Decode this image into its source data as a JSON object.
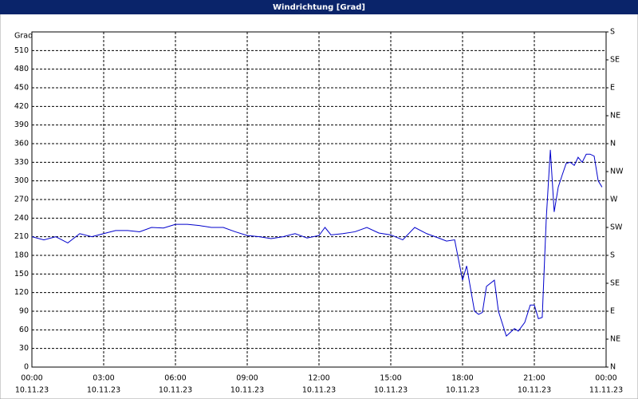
{
  "chart_data": {
    "type": "line",
    "title": "Windrichtung [Grad]",
    "y_label": "Grad",
    "x": [
      0,
      0.5,
      1,
      1.5,
      2,
      2.5,
      3,
      3.5,
      4,
      4.5,
      5,
      5.5,
      6,
      6.5,
      7,
      7.5,
      8,
      8.5,
      9,
      9.5,
      10,
      10.5,
      11,
      11.5,
      12,
      12.25,
      12.5,
      13,
      13.5,
      14,
      14.5,
      15,
      15.5,
      16,
      16.5,
      17,
      17.33,
      17.67,
      18,
      18.17,
      18.5,
      18.67,
      18.83,
      19,
      19.33,
      19.5,
      19.83,
      20.17,
      20.33,
      20.6,
      20.83,
      21,
      21.17,
      21.33,
      21.5,
      21.67,
      21.83,
      22,
      22.17,
      22.33,
      22.5,
      22.67,
      22.83,
      23,
      23.17,
      23.33,
      23.5,
      23.67,
      23.83
    ],
    "series": [
      {
        "name": "Windrichtung",
        "color": "#0000cc",
        "values": [
          210,
          205,
          210,
          200,
          215,
          210,
          215,
          220,
          220,
          218,
          225,
          224,
          230,
          230,
          228,
          225,
          225,
          218,
          212,
          210,
          207,
          210,
          215,
          208,
          212,
          225,
          213,
          215,
          218,
          225,
          216,
          213,
          205,
          225,
          215,
          208,
          203,
          205,
          140,
          163,
          90,
          85,
          88,
          130,
          140,
          90,
          50,
          62,
          58,
          72,
          100,
          100,
          78,
          80,
          240,
          350,
          250,
          290,
          310,
          328,
          330,
          325,
          338,
          330,
          343,
          343,
          340,
          300,
          290
        ]
      }
    ],
    "xlim": [
      0,
      24
    ],
    "xticks": [
      {
        "value": 0,
        "label": "00:00"
      },
      {
        "value": 3,
        "label": "03:00"
      },
      {
        "value": 6,
        "label": "06:00"
      },
      {
        "value": 9,
        "label": "09:00"
      },
      {
        "value": 12,
        "label": "12:00"
      },
      {
        "value": 15,
        "label": "15:00"
      },
      {
        "value": 18,
        "label": "18:00"
      },
      {
        "value": 21,
        "label": "21:00"
      },
      {
        "value": 24,
        "label": "00:00"
      }
    ],
    "xtick_dates": [
      "10.11.23",
      "10.11.23",
      "10.11.23",
      "10.11.23",
      "10.11.23",
      "10.11.23",
      "10.11.23",
      "10.11.23",
      "11.11.23"
    ],
    "ylim": [
      0,
      540
    ],
    "yticks": [
      0,
      30,
      60,
      90,
      120,
      150,
      180,
      210,
      240,
      270,
      300,
      330,
      360,
      390,
      420,
      450,
      480,
      510
    ],
    "y2lim": [
      0,
      540
    ],
    "y2ticks": [
      {
        "value": 0,
        "label": "N"
      },
      {
        "value": 45,
        "label": "NE"
      },
      {
        "value": 90,
        "label": "E"
      },
      {
        "value": 135,
        "label": "SE"
      },
      {
        "value": 180,
        "label": "S"
      },
      {
        "value": 225,
        "label": "SW"
      },
      {
        "value": 270,
        "label": "W"
      },
      {
        "value": 315,
        "label": "NW"
      },
      {
        "value": 360,
        "label": "N"
      },
      {
        "value": 405,
        "label": "NE"
      },
      {
        "value": 450,
        "label": "E"
      },
      {
        "value": 495,
        "label": "SE"
      },
      {
        "value": 540,
        "label": "S"
      }
    ],
    "grid": true
  }
}
